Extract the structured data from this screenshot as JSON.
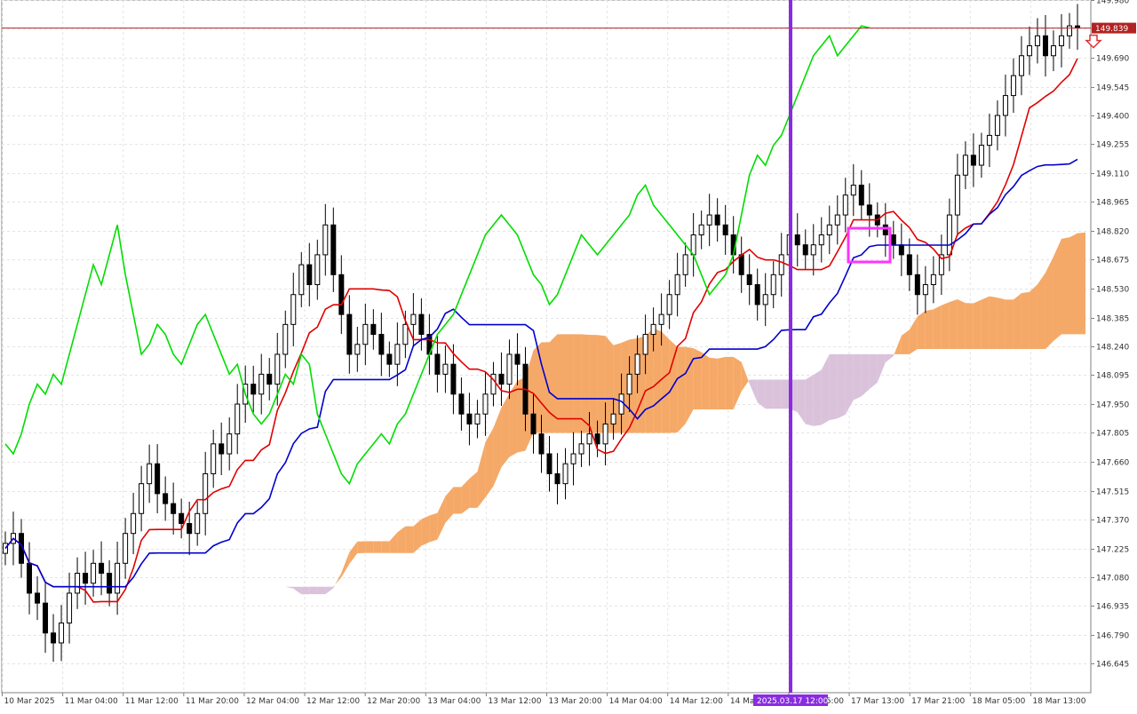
{
  "chart_data": {
    "type": "candlestick",
    "indicator": "Ichimoku Kinko Hyo",
    "ylim": [
      146.5,
      149.98
    ],
    "grid": true,
    "y_ticks": [
      "149.980",
      "149.835",
      "149.690",
      "149.545",
      "149.400",
      "149.255",
      "149.110",
      "148.965",
      "148.820",
      "148.675",
      "148.530",
      "148.385",
      "148.240",
      "148.095",
      "147.950",
      "147.805",
      "147.660",
      "147.515",
      "147.370",
      "147.225",
      "147.080",
      "146.935",
      "146.790",
      "146.645"
    ],
    "x_ticks": [
      "10 Mar 2025",
      "11 Mar 04:00",
      "11 Mar 12:00",
      "11 Mar 20:00",
      "12 Mar 04:00",
      "12 Mar 12:00",
      "12 Mar 20:00",
      "13 Mar 04:00",
      "13 Mar 12:00",
      "13 Mar 20:00",
      "14 Mar 04:00",
      "14 Mar 12:00",
      "14 Mar 20:00",
      "17 Mar 05:00",
      "17 Mar 13:00",
      "17 Mar 21:00",
      "18 Mar 05:00",
      "18 Mar 13:00"
    ],
    "current_price_label": "149.839",
    "current_price": 149.839,
    "crosshair_time_label": "2025.03.17 12:00",
    "close": [
      147.25,
      147.3,
      147.15,
      147.0,
      146.95,
      146.8,
      146.75,
      146.85,
      147.0,
      147.1,
      147.05,
      147.15,
      147.1,
      147.0,
      147.15,
      147.3,
      147.4,
      147.55,
      147.65,
      147.5,
      147.45,
      147.4,
      147.35,
      147.3,
      147.4,
      147.6,
      147.75,
      147.7,
      147.8,
      147.95,
      148.05,
      148.0,
      148.1,
      148.05,
      148.2,
      148.35,
      148.5,
      148.65,
      148.55,
      148.7,
      148.85,
      148.6,
      148.4,
      148.2,
      148.25,
      148.35,
      148.3,
      148.2,
      148.15,
      148.25,
      148.35,
      148.4,
      148.3,
      148.2,
      148.1,
      148.15,
      148.0,
      147.9,
      147.85,
      147.9,
      148.0,
      148.1,
      148.05,
      148.2,
      148.15,
      147.9,
      147.8,
      147.7,
      147.6,
      147.55,
      147.65,
      147.7,
      147.75,
      147.8,
      147.75,
      147.85,
      147.9,
      148.0,
      148.1,
      148.2,
      148.3,
      148.35,
      148.4,
      148.5,
      148.6,
      148.7,
      148.8,
      148.85,
      148.9,
      148.85,
      148.8,
      148.7,
      148.6,
      148.55,
      148.45,
      148.5,
      148.6,
      148.7,
      148.8,
      148.75,
      148.7,
      148.75,
      148.8,
      148.85,
      148.9,
      149.0,
      149.05,
      148.95,
      148.9,
      148.85,
      148.8,
      148.75,
      148.7,
      148.6,
      148.5,
      148.55,
      148.6,
      148.7,
      148.9,
      149.1,
      149.2,
      149.15,
      149.25,
      149.3,
      149.4,
      149.5,
      149.6,
      149.7,
      149.75,
      149.8,
      149.7,
      149.75,
      149.8,
      149.85,
      149.84
    ]
  }
}
